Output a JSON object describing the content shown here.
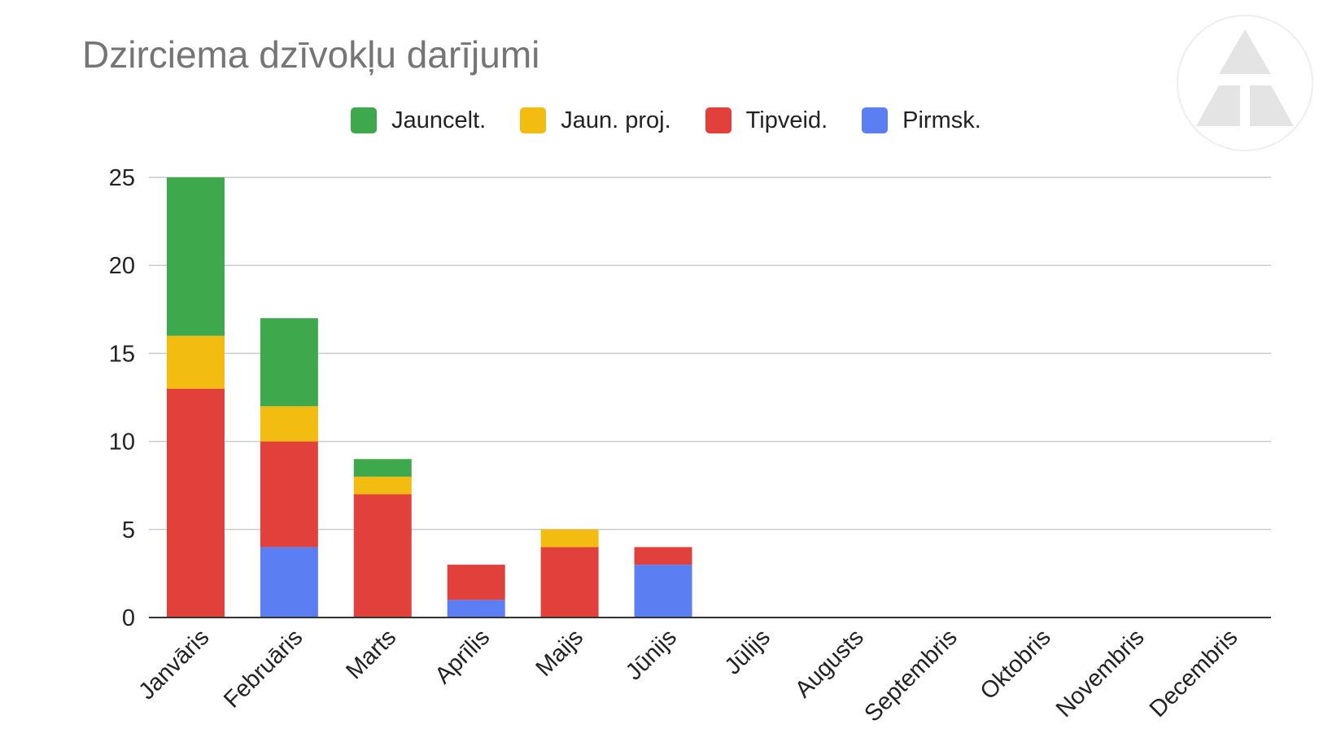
{
  "chart_data": {
    "type": "bar",
    "stacked": true,
    "title": "Dzirciema dzīvokļu darījumi",
    "xlabel": "",
    "ylabel": "",
    "ylim": [
      0,
      25
    ],
    "yticks": [
      0,
      5,
      10,
      15,
      20,
      25
    ],
    "grid": true,
    "legend_position": "top",
    "categories": [
      "Janvāris",
      "Februāris",
      "Marts",
      "Aprīlis",
      "Maijs",
      "Jūnijs",
      "Jūlijs",
      "Augusts",
      "Septembris",
      "Oktobris",
      "Novembris",
      "Decembris"
    ],
    "series": [
      {
        "name": "Pirmsk.",
        "color": "#5b7ff2",
        "values": [
          0,
          4,
          0,
          1,
          0,
          3,
          0,
          0,
          0,
          0,
          0,
          0
        ]
      },
      {
        "name": "Tipveid.",
        "color": "#e2403a",
        "values": [
          13,
          6,
          7,
          2,
          4,
          1,
          0,
          0,
          0,
          0,
          0,
          0
        ]
      },
      {
        "name": "Jaun. proj.",
        "color": "#f2bc11",
        "values": [
          3,
          2,
          1,
          0,
          1,
          0,
          0,
          0,
          0,
          0,
          0,
          0
        ]
      },
      {
        "name": "Jauncelt.",
        "color": "#3ea84d",
        "values": [
          9,
          5,
          1,
          0,
          0,
          0,
          0,
          0,
          0,
          0,
          0,
          0
        ]
      }
    ],
    "legend_order": [
      "Jauncelt.",
      "Jaun. proj.",
      "Tipveid.",
      "Pirmsk."
    ]
  },
  "logo": {
    "icon": "triangle-logo-icon",
    "color": "#e4e4e4"
  }
}
